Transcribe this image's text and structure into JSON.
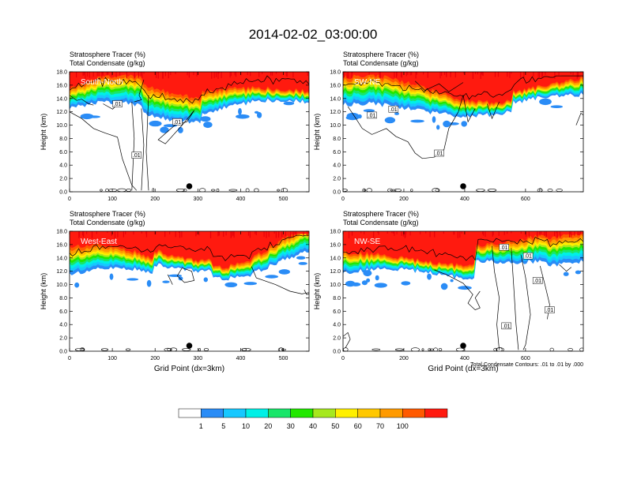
{
  "title": "2014-02-02_03:00:00",
  "chart_data": [
    {
      "type": "heatmap",
      "title_line1": "Stratosphere Tracer   (%)",
      "title_line2": "Total Condensate   (g/kg)",
      "panel_label": "South-North",
      "ylabel": "Height (km)",
      "xlabel": "",
      "xlim": [
        0,
        560
      ],
      "ylim": [
        0,
        18
      ],
      "xticks": [
        "0",
        "100",
        "200",
        "300",
        "400",
        "500"
      ],
      "xtick_values": [
        0,
        100,
        200,
        300,
        400,
        500
      ],
      "yticks": [
        "0.0",
        "2.0",
        "4.0",
        "6.0",
        "8.0",
        "10.0",
        "12.0",
        "14.0",
        "16.0",
        "18.0"
      ],
      "contour_labels": [
        ".01",
        ".01",
        ".01"
      ],
      "dot_x": 280
    },
    {
      "type": "heatmap",
      "title_line1": "Stratosphere Tracer   (%)",
      "title_line2": "Total Condensate   (g/kg)",
      "panel_label": "SW-NE",
      "ylabel": "Height (km)",
      "xlabel": "",
      "xlim": [
        0,
        790
      ],
      "ylim": [
        0,
        18
      ],
      "xticks": [
        "0",
        "200",
        "400",
        "600"
      ],
      "xtick_values": [
        0,
        200,
        400,
        600
      ],
      "yticks": [
        "0.0",
        "2.0",
        "4.0",
        "6.0",
        "8.0",
        "10.0",
        "12.0",
        "14.0",
        "16.0",
        "18.0"
      ],
      "contour_labels": [
        ".01",
        ".01",
        ".01"
      ],
      "dot_x": 395
    },
    {
      "type": "heatmap",
      "title_line1": "Stratosphere Tracer   (%)",
      "title_line2": "Total Condensate   (g/kg)",
      "panel_label": "West-East",
      "ylabel": "Height (km)",
      "xlabel": "Grid Point (dx=3km)",
      "xlim": [
        0,
        560
      ],
      "ylim": [
        0,
        18
      ],
      "xticks": [
        "0",
        "100",
        "200",
        "300",
        "400",
        "500"
      ],
      "xtick_values": [
        0,
        100,
        200,
        300,
        400,
        500
      ],
      "yticks": [
        "0.0",
        "2.0",
        "4.0",
        "6.0",
        "8.0",
        "10.0",
        "12.0",
        "14.0",
        "16.0",
        "18.0"
      ],
      "contour_labels": [],
      "dot_x": 280
    },
    {
      "type": "heatmap",
      "title_line1": "Stratosphere Tracer   (%)",
      "title_line2": "Total Condensate   (g/kg)",
      "panel_label": "NW-SE",
      "ylabel": "Height (km)",
      "xlabel": "Grid Point (dx=3km)",
      "xlim": [
        0,
        790
      ],
      "ylim": [
        0,
        18
      ],
      "xticks": [
        "0",
        "200",
        "400",
        "600"
      ],
      "xtick_values": [
        0,
        200,
        400,
        600
      ],
      "yticks": [
        "0.0",
        "2.0",
        "4.0",
        "6.0",
        "8.0",
        "10.0",
        "12.0",
        "14.0",
        "16.0",
        "18.0"
      ],
      "contour_labels": [
        ".01",
        ".01",
        ".01",
        ".01",
        ".01"
      ],
      "dot_x": 395,
      "note": "Total Condensate Contours: .01 to .01 by .000"
    }
  ],
  "colorbar": {
    "levels": [
      "1",
      "5",
      "10",
      "20",
      "30",
      "40",
      "50",
      "60",
      "70",
      "100"
    ],
    "colors": [
      "#ffffff",
      "#2a8cf6",
      "#16c8ff",
      "#00f0e6",
      "#19e66a",
      "#22e800",
      "#a6e81e",
      "#fff000",
      "#ffc800",
      "#ff9a00",
      "#ff5a00",
      "#ff1a0f"
    ]
  }
}
